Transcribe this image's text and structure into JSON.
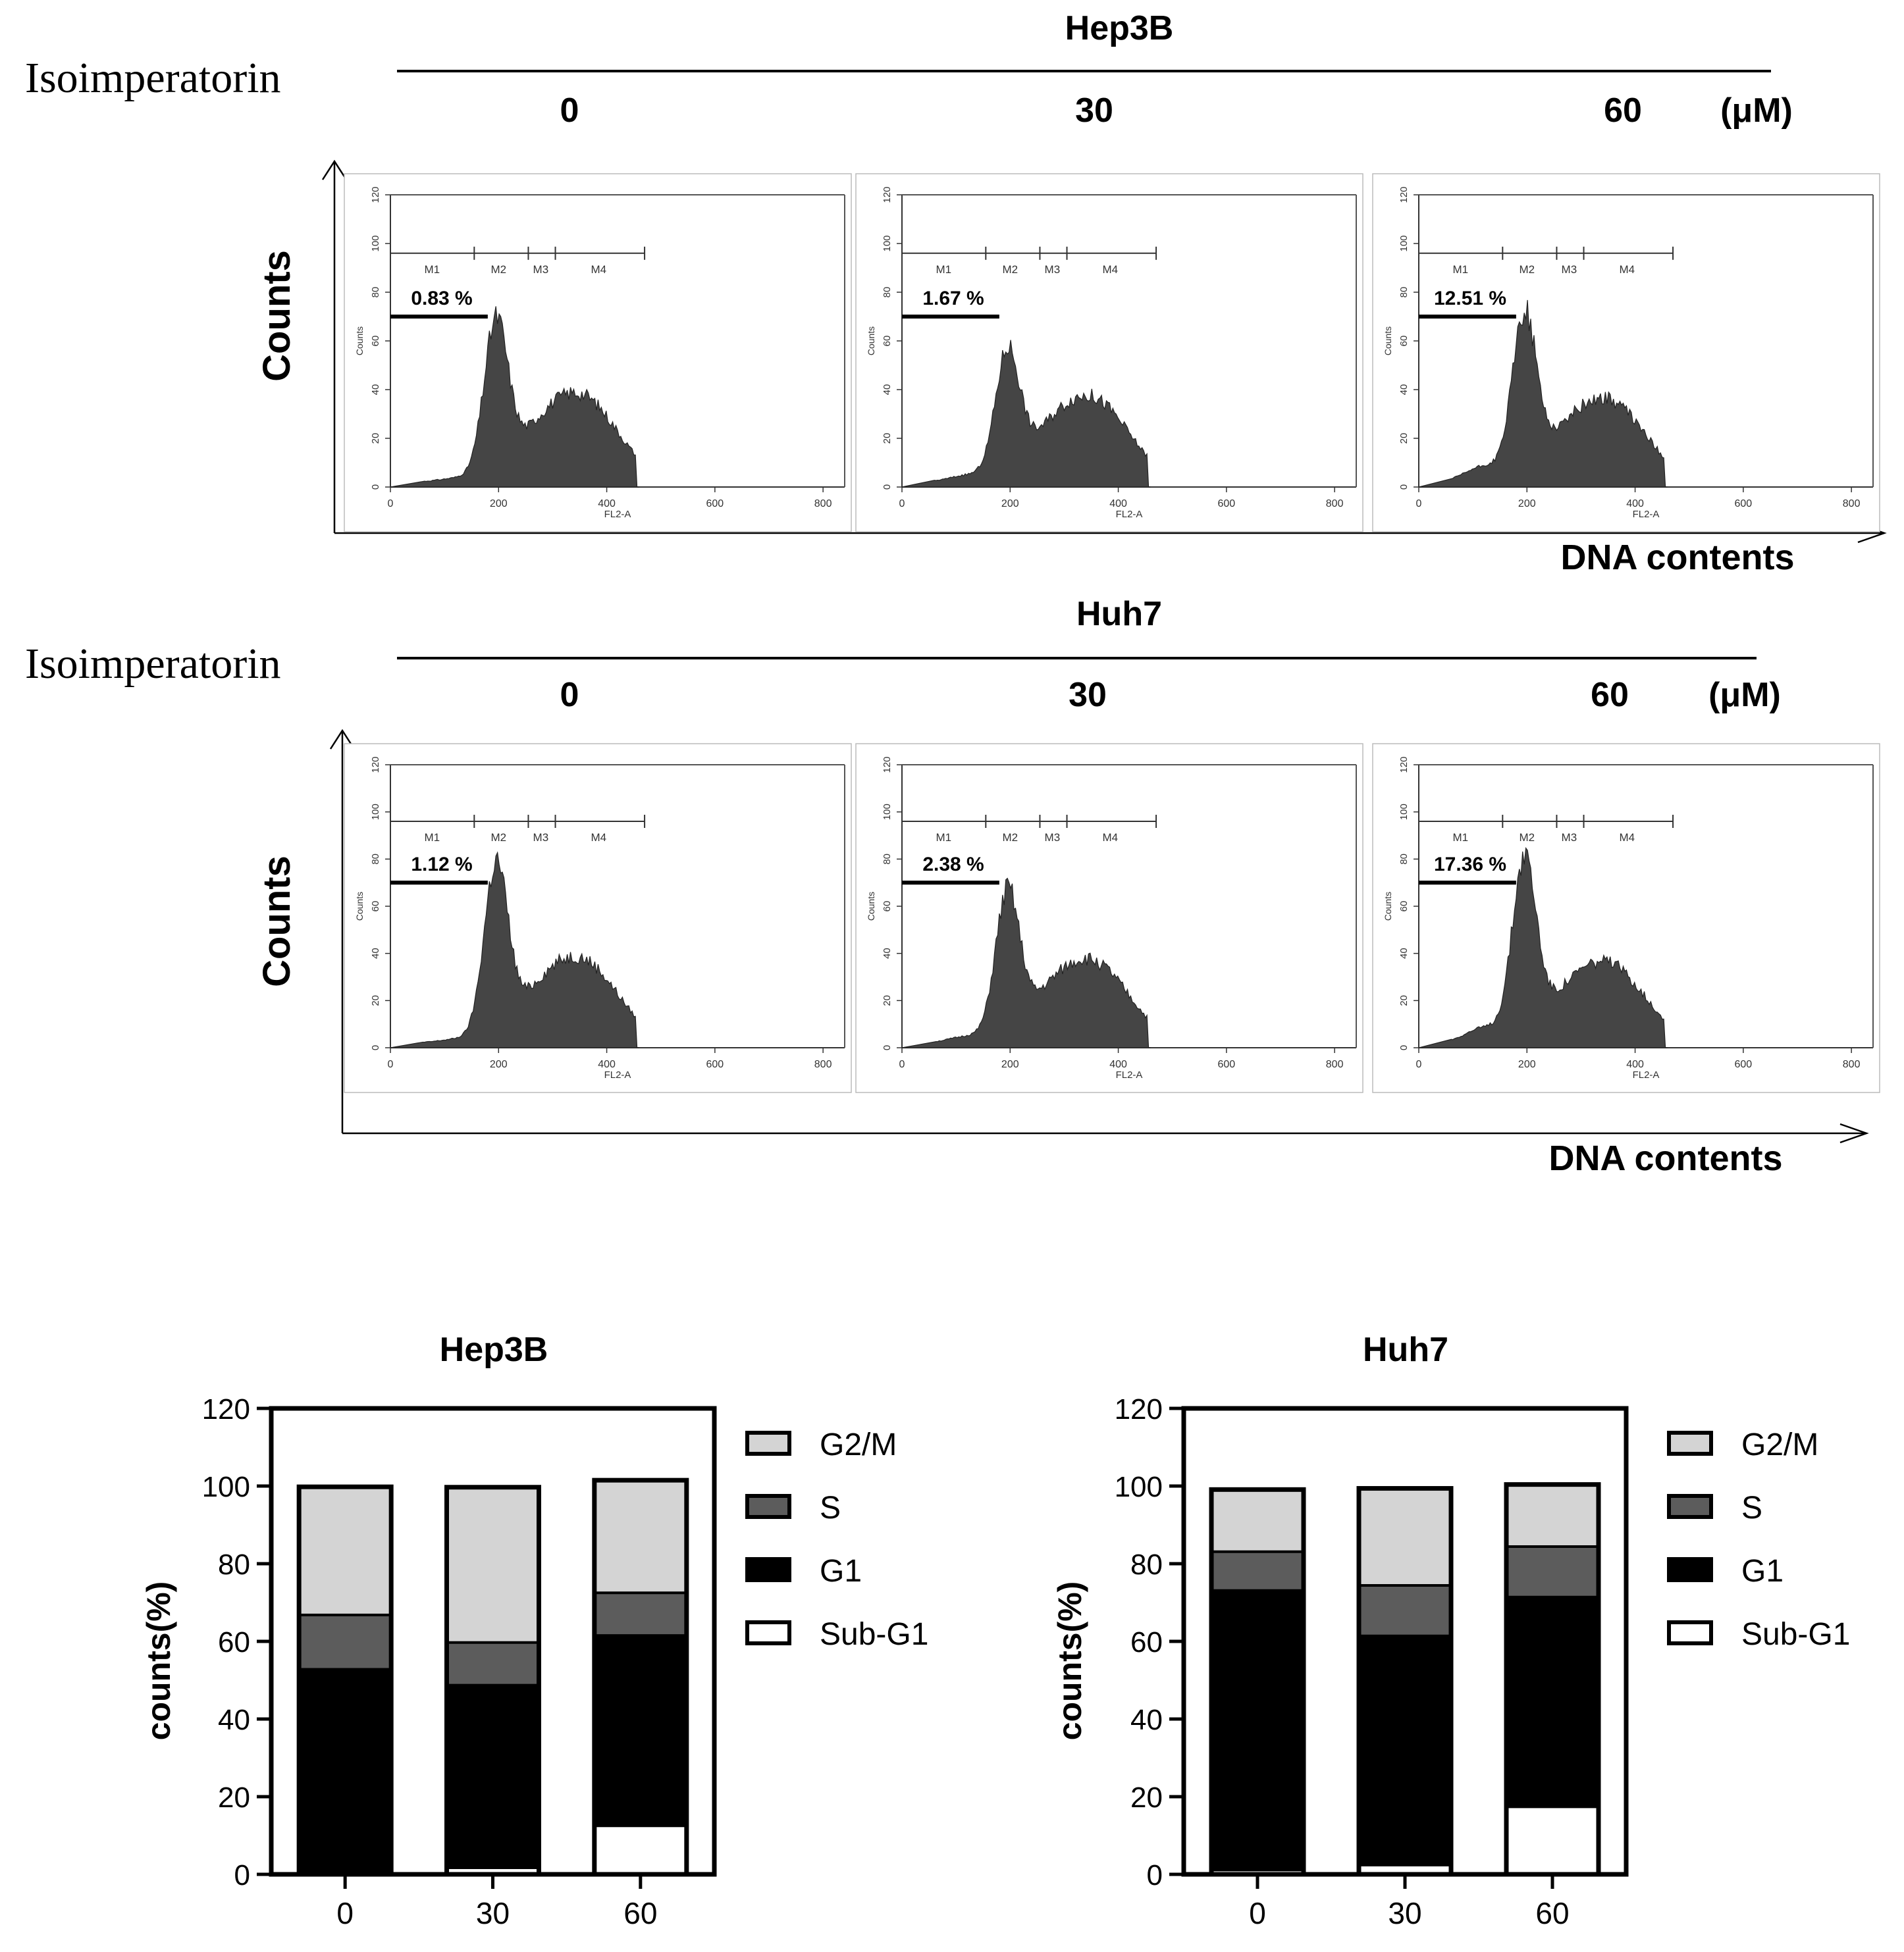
{
  "flow": {
    "treatment_label": "Isoimperatorin",
    "unit_label": "(μM)",
    "y_axis_label": "Counts",
    "x_axis_label": "DNA contents",
    "hist_x_label": "FL2-A",
    "hist_y_label": "Counts",
    "hist_x_ticks": [
      "0",
      "200",
      "400",
      "600",
      "800"
    ],
    "hist_y_ticks": [
      "0",
      "20",
      "40",
      "60",
      "80",
      "100",
      "120"
    ],
    "markers": [
      "M1",
      "M2",
      "M3",
      "M4"
    ],
    "rows": [
      {
        "cell_line": "Hep3B",
        "doses": [
          "0",
          "30",
          "60"
        ],
        "subg1_percent": [
          "0.83 %",
          "1.67 %",
          "12.51 %"
        ]
      },
      {
        "cell_line": "Huh7",
        "doses": [
          "0",
          "30",
          "60"
        ],
        "subg1_percent": [
          "1.12 %",
          "2.38 %",
          "17.36 %"
        ]
      }
    ]
  },
  "chart_data": [
    {
      "type": "bar",
      "stacked": true,
      "title": "Hep3B",
      "xlabel": "",
      "ylabel": "counts(%)",
      "ylim": [
        0,
        120
      ],
      "yticks": [
        "0",
        "20",
        "40",
        "60",
        "80",
        "100",
        "120"
      ],
      "categories": [
        "0",
        "30",
        "60"
      ],
      "series": [
        {
          "name": "Sub-G1",
          "values": [
            0.8,
            1.7,
            12.5
          ]
        },
        {
          "name": "G1",
          "values": [
            52,
            47,
            49
          ]
        },
        {
          "name": "S",
          "values": [
            14,
            11,
            11
          ]
        },
        {
          "name": "G2/M",
          "values": [
            33,
            40,
            29
          ]
        }
      ],
      "legend": [
        "G2/M",
        "S",
        "G1",
        "Sub-G1"
      ]
    },
    {
      "type": "bar",
      "stacked": true,
      "title": "Huh7",
      "xlabel": "",
      "ylabel": "counts(%)",
      "ylim": [
        0,
        120
      ],
      "yticks": [
        "0",
        "20",
        "40",
        "60",
        "80",
        "100",
        "120"
      ],
      "categories": [
        "0",
        "30",
        "60"
      ],
      "series": [
        {
          "name": "Sub-G1",
          "values": [
            1.1,
            2.4,
            17.4
          ]
        },
        {
          "name": "G1",
          "values": [
            72,
            59,
            54
          ]
        },
        {
          "name": "S",
          "values": [
            10,
            13,
            13
          ]
        },
        {
          "name": "G2/M",
          "values": [
            16,
            25,
            16
          ]
        }
      ],
      "legend": [
        "G2/M",
        "S",
        "G1",
        "Sub-G1"
      ]
    }
  ],
  "colors": {
    "G2/M": "#d4d4d4",
    "S": "#5c5c5c",
    "G1": "#000000",
    "Sub-G1": "#ffffff",
    "histogram_fill": "#454545"
  }
}
